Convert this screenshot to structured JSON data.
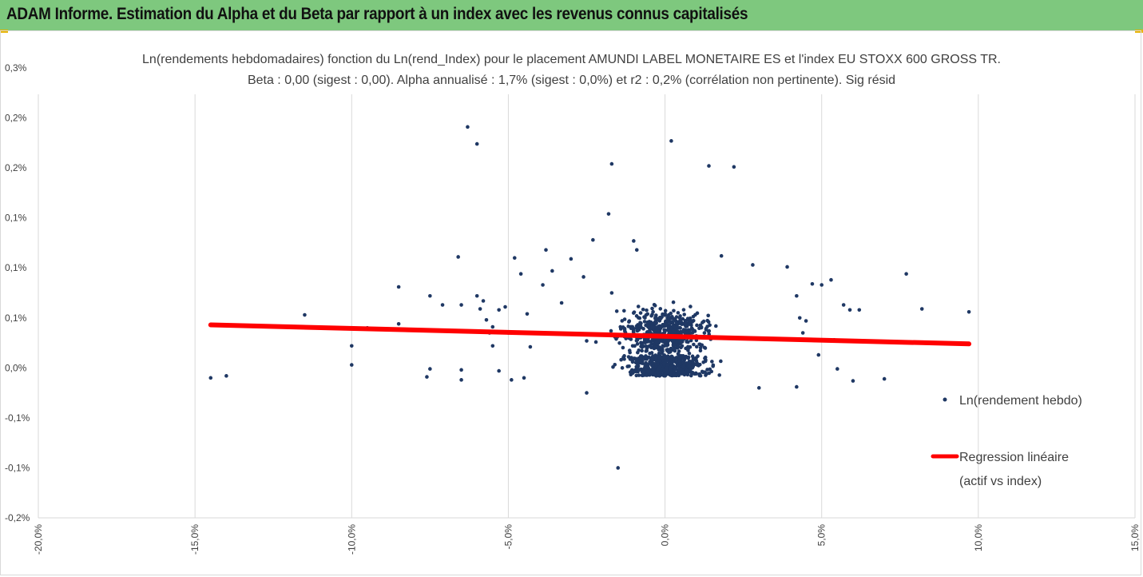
{
  "banner": {
    "title": "ADAM Informe. Estimation du Alpha et du Beta par rapport à un index avec les revenus connus capitalisés",
    "color": "#7ec87e"
  },
  "chart_data": {
    "type": "scatter",
    "title_line1": "Ln(rendements hebdomadaires) fonction du Ln(rend_Index) pour le placement AMUNDI LABEL MONETAIRE ES et l'index EU STOXX 600 GROSS TR.",
    "title_line2": "Beta : 0,00 (sigest : 0,00). Alpha annualisé : 1,7% (sigest : 0,0%) et r2 : 0,2% (corrélation non pertinente). Sig résid",
    "xlim": [
      -20,
      15
    ],
    "ylim": [
      -0.15,
      0.3
    ],
    "x_ticks": [
      -20,
      -15,
      -10,
      -5,
      0,
      5,
      10,
      15
    ],
    "x_tick_labels": [
      "-20,0%",
      "-15,0%",
      "-10,0%",
      "-5,0%",
      "0,0%",
      "5,0%",
      "10,0%",
      "15,0%"
    ],
    "y_ticks": [
      -0.15,
      -0.1,
      -0.05,
      0,
      0.05,
      0.1,
      0.15,
      0.2,
      0.25,
      0.3
    ],
    "y_tick_labels": [
      "-0,2%",
      "-0,1%",
      "-0,1%",
      "0,0%",
      "0,1%",
      "0,1%",
      "0,1%",
      "0,2%",
      "0,2%",
      "0,3%"
    ],
    "grid": "vertical",
    "series": [
      {
        "name": "Ln(rendement hebdo)",
        "kind": "scatter",
        "color": "#1f3864",
        "points": [
          [
            -14.5,
            -0.01
          ],
          [
            -14,
            -0.008
          ],
          [
            -11.5,
            0.053
          ],
          [
            -10,
            0.022
          ],
          [
            -10,
            0.003
          ],
          [
            -9.5,
            0.04
          ],
          [
            -8.5,
            0.044
          ],
          [
            -8.5,
            0.081
          ],
          [
            -7.5,
            0.072
          ],
          [
            -7.5,
            -0.001
          ],
          [
            -7.6,
            -0.009
          ],
          [
            -7.1,
            0.063
          ],
          [
            -6.6,
            0.111
          ],
          [
            -6.5,
            0.063
          ],
          [
            -6.5,
            -0.002
          ],
          [
            -6.5,
            -0.012
          ],
          [
            -6.3,
            0.241
          ],
          [
            -6,
            0.224
          ],
          [
            -6,
            0.072
          ],
          [
            -5.8,
            0.067
          ],
          [
            -5.9,
            0.059
          ],
          [
            -5.7,
            0.048
          ],
          [
            -5.6,
            0.035
          ],
          [
            -5.5,
            0.022
          ],
          [
            -5.3,
            -0.003
          ],
          [
            -5.5,
            0.041
          ],
          [
            -5.3,
            0.058
          ],
          [
            -5.1,
            0.061
          ],
          [
            -5,
            0.035
          ],
          [
            -4.9,
            -0.012
          ],
          [
            -4.8,
            0.11
          ],
          [
            -4.6,
            0.094
          ],
          [
            -4.4,
            0.054
          ],
          [
            -4.3,
            0.021
          ],
          [
            -4.5,
            -0.01
          ],
          [
            -3.9,
            0.083
          ],
          [
            -3.8,
            0.118
          ],
          [
            -3.6,
            0.097
          ],
          [
            -3.3,
            0.065
          ],
          [
            -3,
            0.109
          ],
          [
            -2.6,
            0.091
          ],
          [
            -2.5,
            0.027
          ],
          [
            -2.5,
            -0.025
          ],
          [
            -2.3,
            0.128
          ],
          [
            -1.8,
            0.154
          ],
          [
            -1.7,
            0.204
          ],
          [
            -1.7,
            0.075
          ],
          [
            -1.6,
            0.031
          ],
          [
            -1.5,
            -0.1
          ],
          [
            -1.3,
            0.012
          ],
          [
            -1,
            0.127
          ],
          [
            -0.9,
            0.118
          ],
          [
            0.2,
            0.227
          ],
          [
            1.4,
            0.202
          ],
          [
            2.2,
            0.201
          ],
          [
            2.8,
            0.103
          ],
          [
            1.8,
            0.112
          ],
          [
            3.9,
            0.101
          ],
          [
            4.7,
            0.084
          ],
          [
            5,
            0.083
          ],
          [
            5.3,
            0.088
          ],
          [
            5.7,
            0.063
          ],
          [
            5.9,
            0.058
          ],
          [
            6.2,
            0.058
          ],
          [
            7.7,
            0.094
          ],
          [
            8.2,
            0.059
          ],
          [
            9.7,
            0.056
          ],
          [
            5.4,
            0.028
          ],
          [
            5.5,
            -0.001
          ],
          [
            6,
            -0.013
          ],
          [
            7,
            -0.011
          ],
          [
            4.5,
            0.047
          ],
          [
            4.4,
            0.035
          ],
          [
            4.9,
            0.013
          ],
          [
            4.2,
            -0.019
          ],
          [
            3,
            -0.02
          ],
          [
            4.2,
            0.072
          ],
          [
            4.3,
            0.05
          ]
        ]
      },
      {
        "name": "Regression linéaire (actif vs index)",
        "kind": "line",
        "color": "#ff0000",
        "points": [
          [
            -14.5,
            0.043
          ],
          [
            9.7,
            0.024
          ]
        ]
      }
    ],
    "legend": {
      "position": "right",
      "entries": [
        "Ln(rendement hebdo)",
        "Regression linéaire",
        "(actif vs index)"
      ]
    }
  }
}
